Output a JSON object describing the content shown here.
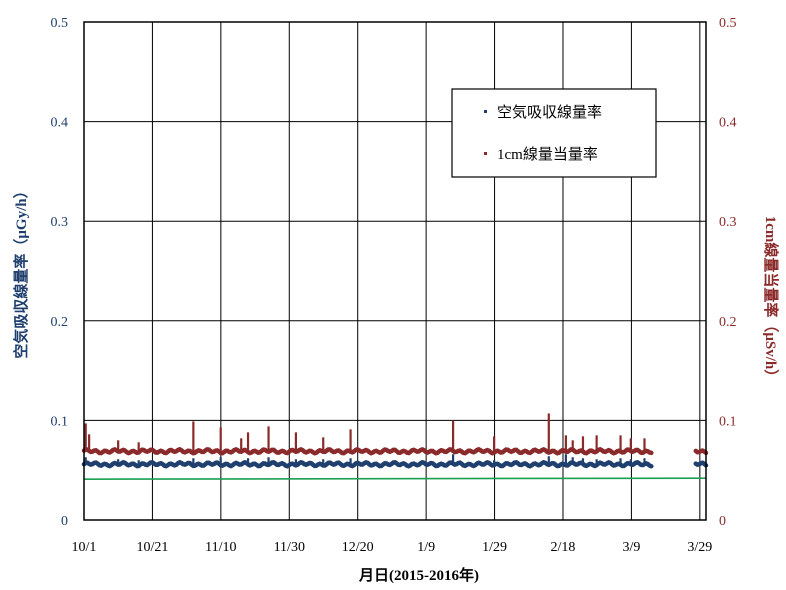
{
  "chart_data": {
    "type": "scatter",
    "xlabel": "月日(2015-2016年)",
    "ylabel_left": "空気吸収線量率（μGy/h）",
    "ylabel_right": "1cm線量当量率（μSv/h）",
    "x_ticks": [
      "10/1",
      "10/21",
      "11/10",
      "11/30",
      "12/20",
      "1/9",
      "1/29",
      "2/18",
      "3/9",
      "3/29"
    ],
    "x_range_days": [
      0,
      182
    ],
    "y_ticks_left": [
      "0",
      "0.1",
      "0.2",
      "0.3",
      "0.4",
      "0.5"
    ],
    "y_ticks_right": [
      "0",
      "0.1",
      "0.2",
      "0.3",
      "0.4",
      "0.5"
    ],
    "ylim": [
      0,
      0.5
    ],
    "grid": true,
    "legend_position": "top-right",
    "series": [
      {
        "name": "空気吸収線量率",
        "color": "#1f3f6e",
        "baseline": 0.056,
        "segments": [
          [
            0,
            166
          ],
          [
            179,
            182
          ]
        ],
        "spikes": [
          [
            0.5,
            0.063
          ],
          [
            10,
            0.061
          ],
          [
            16,
            0.06
          ],
          [
            32,
            0.062
          ],
          [
            40,
            0.063
          ],
          [
            48,
            0.062
          ],
          [
            54,
            0.063
          ],
          [
            62,
            0.061
          ],
          [
            70,
            0.061
          ],
          [
            78,
            0.062
          ],
          [
            108,
            0.066
          ],
          [
            120,
            0.06
          ],
          [
            136,
            0.064
          ],
          [
            141,
            0.066
          ],
          [
            143,
            0.063
          ],
          [
            146,
            0.062
          ],
          [
            150,
            0.061
          ],
          [
            157,
            0.062
          ],
          [
            160,
            0.061
          ],
          [
            164,
            0.062
          ]
        ]
      },
      {
        "name": "1cm線量当量率",
        "color": "#8b2a2a",
        "baseline": 0.069,
        "segments": [
          [
            0,
            166
          ],
          [
            179,
            182
          ]
        ],
        "spikes": [
          [
            0.5,
            0.097
          ],
          [
            1.5,
            0.086
          ],
          [
            10,
            0.08
          ],
          [
            16,
            0.078
          ],
          [
            32,
            0.099
          ],
          [
            40,
            0.093
          ],
          [
            46,
            0.082
          ],
          [
            48,
            0.088
          ],
          [
            54,
            0.094
          ],
          [
            62,
            0.088
          ],
          [
            70,
            0.083
          ],
          [
            78,
            0.091
          ],
          [
            108,
            0.1
          ],
          [
            120,
            0.084
          ],
          [
            136,
            0.107
          ],
          [
            141,
            0.085
          ],
          [
            143,
            0.08
          ],
          [
            146,
            0.084
          ],
          [
            150,
            0.085
          ],
          [
            157,
            0.085
          ],
          [
            160,
            0.082
          ],
          [
            164,
            0.082
          ]
        ]
      },
      {
        "name": "",
        "color": "#1aa050",
        "line": [
          [
            0,
            0.041
          ],
          [
            182,
            0.042
          ]
        ]
      }
    ]
  }
}
